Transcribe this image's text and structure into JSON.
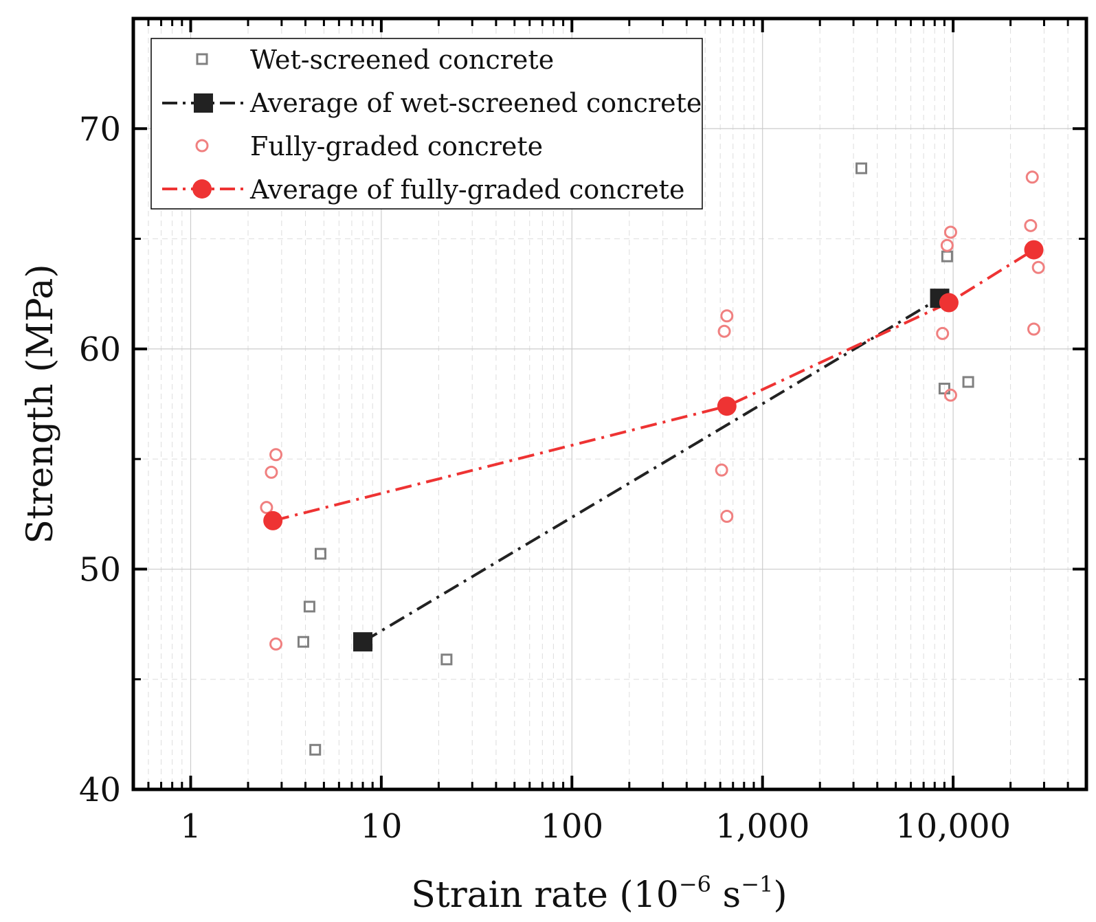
{
  "chart_data": {
    "type": "scatter",
    "x_scale": "log",
    "xlim": [
      0.5,
      50000
    ],
    "ylim": [
      40,
      75
    ],
    "grid": true,
    "legend_position": "top-left",
    "xlabel": "Strain rate (10",
    "xlabel_exp1": "−6",
    "xlabel_mid": " s",
    "xlabel_exp2": "−1",
    "xlabel_end": ")",
    "ylabel": "Strength (MPa)",
    "x_ticks": [
      {
        "value": 1,
        "label": "1"
      },
      {
        "value": 10,
        "label": "10"
      },
      {
        "value": 100,
        "label": "100"
      },
      {
        "value": 1000,
        "label": "1,000"
      },
      {
        "value": 10000,
        "label": "10,000"
      }
    ],
    "y_ticks": [
      {
        "value": 40,
        "label": "40"
      },
      {
        "value": 50,
        "label": "50"
      },
      {
        "value": 60,
        "label": "60"
      },
      {
        "value": 70,
        "label": "70"
      }
    ],
    "colors": {
      "wet_points": "#808080",
      "wet_average": "#222222",
      "fully_points": "#f08080",
      "fully_average": "#ee3333"
    },
    "series": [
      {
        "name": "Wet-screened concrete",
        "style": "open-square",
        "points": [
          [
            4.8,
            50.7
          ],
          [
            4.2,
            48.3
          ],
          [
            3.9,
            46.7
          ],
          [
            4.5,
            41.8
          ],
          [
            22,
            45.9
          ],
          [
            3300,
            68.2
          ],
          [
            9300,
            64.2
          ],
          [
            9000,
            58.2
          ],
          [
            12000,
            58.5
          ]
        ]
      },
      {
        "name": "Average of wet-screened concrete",
        "style": "filled-square-dashdot",
        "points": [
          [
            8,
            46.7
          ],
          [
            8500,
            62.3
          ]
        ]
      },
      {
        "name": "Fully-graded concrete",
        "style": "open-circle",
        "points": [
          [
            2.8,
            55.2
          ],
          [
            2.65,
            54.4
          ],
          [
            2.5,
            52.8
          ],
          [
            2.8,
            46.6
          ],
          [
            650,
            61.5
          ],
          [
            630,
            60.8
          ],
          [
            610,
            54.5
          ],
          [
            650,
            52.4
          ],
          [
            9700,
            65.3
          ],
          [
            9300,
            64.7
          ],
          [
            8800,
            60.7
          ],
          [
            9700,
            57.9
          ],
          [
            26000,
            67.8
          ],
          [
            25500,
            65.6
          ],
          [
            28000,
            63.7
          ],
          [
            26500,
            60.9
          ]
        ]
      },
      {
        "name": "Average of fully-graded concrete",
        "style": "filled-circle-dashdot",
        "points": [
          [
            2.7,
            52.2
          ],
          [
            650,
            57.4
          ],
          [
            9500,
            62.1
          ],
          [
            26500,
            64.5
          ]
        ]
      }
    ]
  }
}
